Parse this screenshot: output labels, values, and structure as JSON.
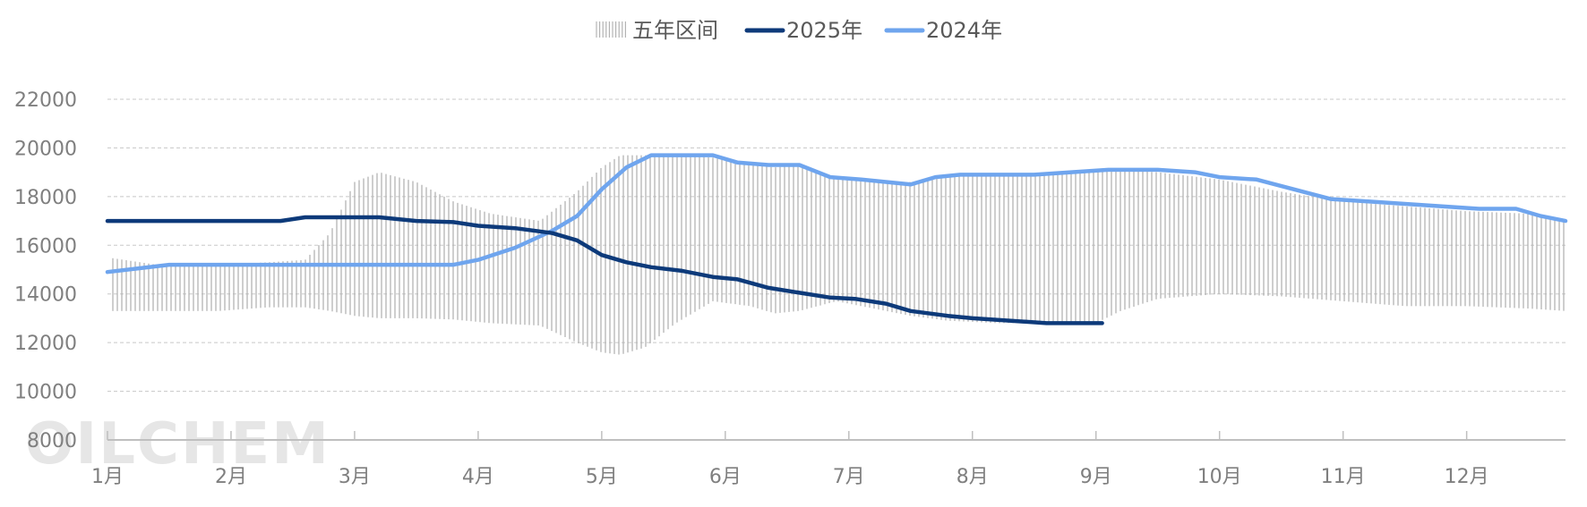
{
  "watermark": "OILCHEM",
  "legend": {
    "range_label": "五年区间",
    "s2025_label": "2025年",
    "s2024_label": "2024年"
  },
  "colors": {
    "range": "#b3b3b3",
    "s2025": "#0d3a7a",
    "s2024": "#6fa5ee",
    "grid": "#c8c8c8",
    "axis": "#bfbfbf"
  },
  "chart_data": {
    "type": "line",
    "title": "",
    "xlabel": "",
    "ylabel": "",
    "ylim": [
      8000,
      22000
    ],
    "yticks": [
      8000,
      10000,
      12000,
      14000,
      16000,
      18000,
      20000,
      22000
    ],
    "x_range": [
      1,
      12.8
    ],
    "month_labels": [
      "1月",
      "2月",
      "3月",
      "4月",
      "5月",
      "6月",
      "7月",
      "8月",
      "9月",
      "10月",
      "11月",
      "12月"
    ],
    "grid": "horizontal-dashed",
    "legend_position": "top-center",
    "five_year_range": {
      "name": "五年区间",
      "x": [
        1.0,
        1.4,
        1.9,
        2.3,
        2.6,
        2.8,
        3.0,
        3.2,
        3.5,
        3.8,
        4.1,
        4.5,
        4.8,
        5.0,
        5.15,
        5.35,
        5.6,
        5.9,
        6.2,
        6.4,
        6.6,
        6.9,
        7.2,
        7.5,
        7.8,
        8.2,
        8.6,
        9.0,
        9.2,
        9.5,
        10.0,
        10.5,
        11.0,
        11.5,
        12.0,
        12.5,
        12.8
      ],
      "low": [
        13300,
        13300,
        13300,
        13450,
        13450,
        13300,
        13100,
        13000,
        13000,
        12950,
        12800,
        12700,
        12000,
        11600,
        11500,
        11800,
        12800,
        13700,
        13500,
        13200,
        13300,
        13700,
        13400,
        13100,
        12900,
        12800,
        12800,
        12800,
        13300,
        13800,
        14000,
        13900,
        13700,
        13500,
        13500,
        13400,
        13300
      ],
      "high": [
        15500,
        15200,
        15200,
        15300,
        15400,
        16500,
        18600,
        19000,
        18600,
        17800,
        17300,
        17000,
        18200,
        19200,
        19700,
        19700,
        19700,
        19600,
        19300,
        19200,
        19300,
        18800,
        18600,
        18600,
        18800,
        18900,
        19000,
        19100,
        19100,
        19000,
        18700,
        18200,
        17800,
        17600,
        17400,
        17300,
        17000
      ]
    },
    "series": [
      {
        "name": "2025年",
        "x": [
          1.0,
          1.7,
          2.2,
          2.4,
          2.6,
          3.0,
          3.2,
          3.5,
          3.8,
          4.0,
          4.3,
          4.6,
          4.8,
          5.0,
          5.2,
          5.4,
          5.65,
          5.9,
          6.1,
          6.35,
          6.6,
          6.85,
          7.05,
          7.3,
          7.5,
          7.8,
          8.0,
          8.3,
          8.6,
          8.85,
          9.05
        ],
        "values": [
          17000,
          17000,
          17000,
          17000,
          17150,
          17150,
          17150,
          17000,
          16950,
          16800,
          16700,
          16500,
          16200,
          15600,
          15300,
          15100,
          14950,
          14700,
          14600,
          14250,
          14050,
          13850,
          13800,
          13600,
          13300,
          13100,
          13000,
          12900,
          12800,
          12800,
          12800
        ]
      },
      {
        "name": "2024年",
        "x": [
          1.0,
          1.5,
          2.0,
          2.5,
          2.9,
          3.5,
          3.8,
          4.0,
          4.3,
          4.6,
          4.8,
          5.0,
          5.2,
          5.4,
          5.6,
          5.9,
          6.1,
          6.35,
          6.6,
          6.85,
          7.1,
          7.3,
          7.5,
          7.7,
          7.9,
          8.2,
          8.5,
          8.8,
          9.1,
          9.5,
          9.8,
          10.0,
          10.3,
          10.6,
          10.9,
          11.2,
          11.5,
          11.8,
          12.1,
          12.4,
          12.6,
          12.8
        ],
        "values": [
          14900,
          15200,
          15200,
          15200,
          15200,
          15200,
          15200,
          15400,
          15900,
          16600,
          17200,
          18300,
          19200,
          19700,
          19700,
          19700,
          19400,
          19300,
          19300,
          18800,
          18700,
          18600,
          18500,
          18800,
          18900,
          18900,
          18900,
          19000,
          19100,
          19100,
          19000,
          18800,
          18700,
          18300,
          17900,
          17800,
          17700,
          17600,
          17500,
          17500,
          17200,
          17000
        ]
      }
    ]
  }
}
